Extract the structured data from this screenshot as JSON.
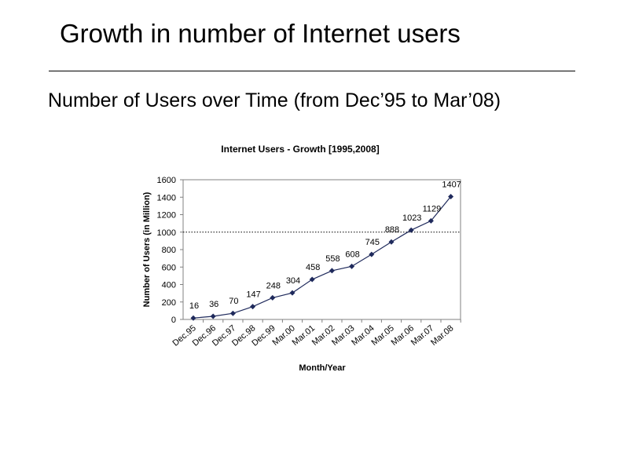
{
  "slide": {
    "title": "Growth in number of Internet users",
    "subtitle": "Number of Users over Time (from Dec’95 to Mar’08)"
  },
  "colors": {
    "line": "#1f2a5c",
    "marker": "#1f2a5c",
    "axis": "#808080",
    "reference": "#000000"
  },
  "chart_data": {
    "type": "line",
    "title": "Internet Users - Growth [1995,2008]",
    "xlabel": "Month/Year",
    "ylabel": "Number of Users (in Million)",
    "categories": [
      "Dec.95",
      "Dec.96",
      "Dec.97",
      "Dec.98",
      "Dec.99",
      "Mar.00",
      "Mar.01",
      "Mar.02",
      "Mar.03",
      "Mar.04",
      "Mar.05",
      "Mar.06",
      "Mar.07",
      "Mar.08"
    ],
    "series": [
      {
        "name": "Internet Users",
        "values": [
          16,
          36,
          70,
          147,
          248,
          304,
          458,
          558,
          608,
          745,
          888,
          1023,
          1129,
          1407
        ]
      }
    ],
    "data_labels": [
      "16",
      "36",
      "70",
      "147",
      "248",
      "304",
      "458",
      "558",
      "608",
      "745",
      "888",
      "1023",
      "1129",
      "1407"
    ],
    "ylim": [
      0,
      1600
    ],
    "yticks": [
      0,
      200,
      400,
      600,
      800,
      1000,
      1200,
      1400,
      1600
    ],
    "reference_line": {
      "value": 1000,
      "style": "dotted"
    },
    "grid": false,
    "legend": "none"
  }
}
